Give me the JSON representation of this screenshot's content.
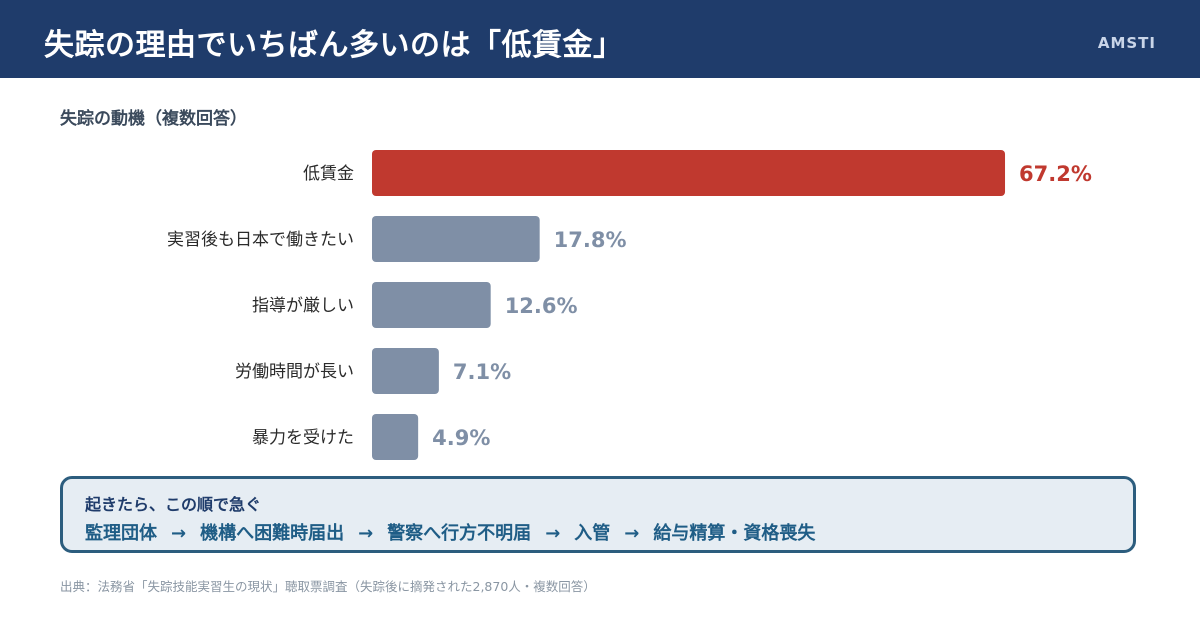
{
  "header": {
    "title": "失踪の理由でいちばん多いのは「低賃金」",
    "brand": "AMSTI"
  },
  "chart_data": {
    "type": "bar",
    "orientation": "horizontal",
    "title": "失踪の動機（複数回答）",
    "categories": [
      "低賃金",
      "実習後も日本で働きたい",
      "指導が厳しい",
      "労働時間が長い",
      "暴力を受けた"
    ],
    "values": [
      67.2,
      17.8,
      12.6,
      7.1,
      4.9
    ],
    "value_labels": [
      "67.2%",
      "17.8%",
      "12.6%",
      "7.1%",
      "4.9%"
    ],
    "unit": "%",
    "xlim": [
      0,
      100
    ],
    "grid": false,
    "highlight_index": 0,
    "colors": {
      "highlight": "#c0392f",
      "default": "#7f8fa6"
    }
  },
  "flow": {
    "heading": "起きたら、この順で急ぐ",
    "steps": [
      "監理団体",
      "機構へ困難時届出",
      "警察へ行方不明届",
      "入管",
      "給与精算・資格喪失"
    ],
    "arrow": "→"
  },
  "footnote": "出典：法務省「失踪技能実習生の現状」聴取票調査（失踪後に摘発された2,870人・複数回答）"
}
